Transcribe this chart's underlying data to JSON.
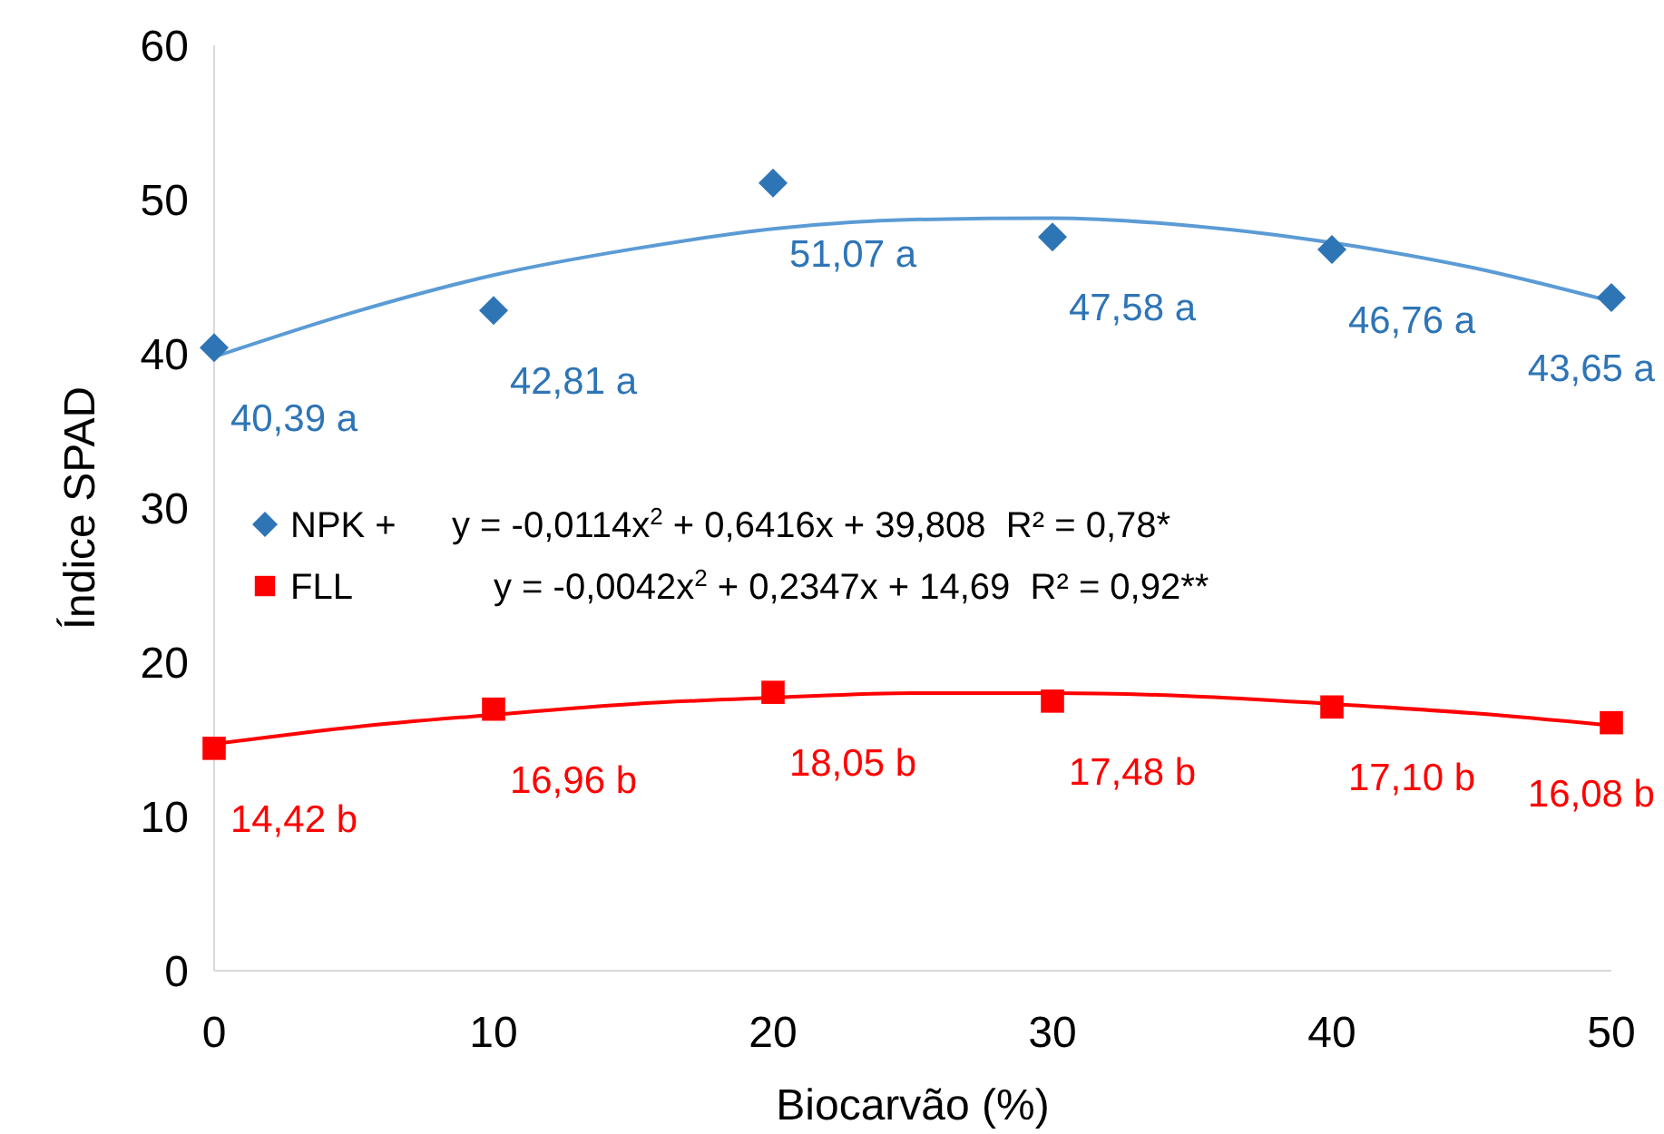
{
  "chart_data": {
    "type": "scatter",
    "xlabel": "Biocarvão (%)",
    "ylabel": "Índice SPAD",
    "x": [
      0,
      10,
      20,
      30,
      40,
      50
    ],
    "xlim": [
      0,
      50
    ],
    "xticks": [
      0,
      10,
      20,
      30,
      40,
      50
    ],
    "ylim": [
      0,
      60
    ],
    "yticks": [
      0,
      10,
      20,
      30,
      40,
      50,
      60
    ],
    "grid": false,
    "legend": "left",
    "series": [
      {
        "type": "line",
        "color": "#5b9bd5",
        "x": [
          0,
          5,
          10,
          15,
          20,
          25,
          30,
          35,
          40,
          45,
          50
        ],
        "values": [
          39.8,
          42.7,
          45.1,
          46.8,
          48.1,
          48.7,
          48.8,
          48.3,
          47.2,
          45.6,
          43.4
        ]
      },
      {
        "type": "line",
        "color": "#ff0000",
        "x": [
          0,
          5,
          10,
          15,
          20,
          25,
          30,
          35,
          40,
          45,
          50
        ],
        "values": [
          14.7,
          15.8,
          16.6,
          17.3,
          17.7,
          18.0,
          18.0,
          17.8,
          17.3,
          16.7,
          15.9
        ]
      },
      {
        "name": "NPK +",
        "color": "#2e75b6",
        "marker": "diamond",
        "values": [
          40.39,
          42.81,
          51.07,
          47.58,
          46.76,
          43.65
        ],
        "value_labels": [
          "40,39 a",
          "42,81 a",
          "51,07 a",
          "47,58 a",
          "46,76 a",
          "43,65 a"
        ]
      },
      {
        "name": "FLL",
        "color": "#ff0000",
        "marker": "square",
        "values": [
          14.42,
          16.96,
          18.05,
          17.48,
          17.1,
          16.08
        ],
        "value_labels": [
          "14,42 b",
          "16,96 b",
          "18,05 b",
          "17,48 b",
          "17,10 b",
          "16,08 b"
        ]
      }
    ],
    "annotations": [
      "y = -0,0114x$^{2}$ + 0,6416x + 39,808  R² = 0,78*",
      "y = -0,0042x$^{2}$ + 0,2347x + 14,69  R² = 0,92**"
    ]
  }
}
